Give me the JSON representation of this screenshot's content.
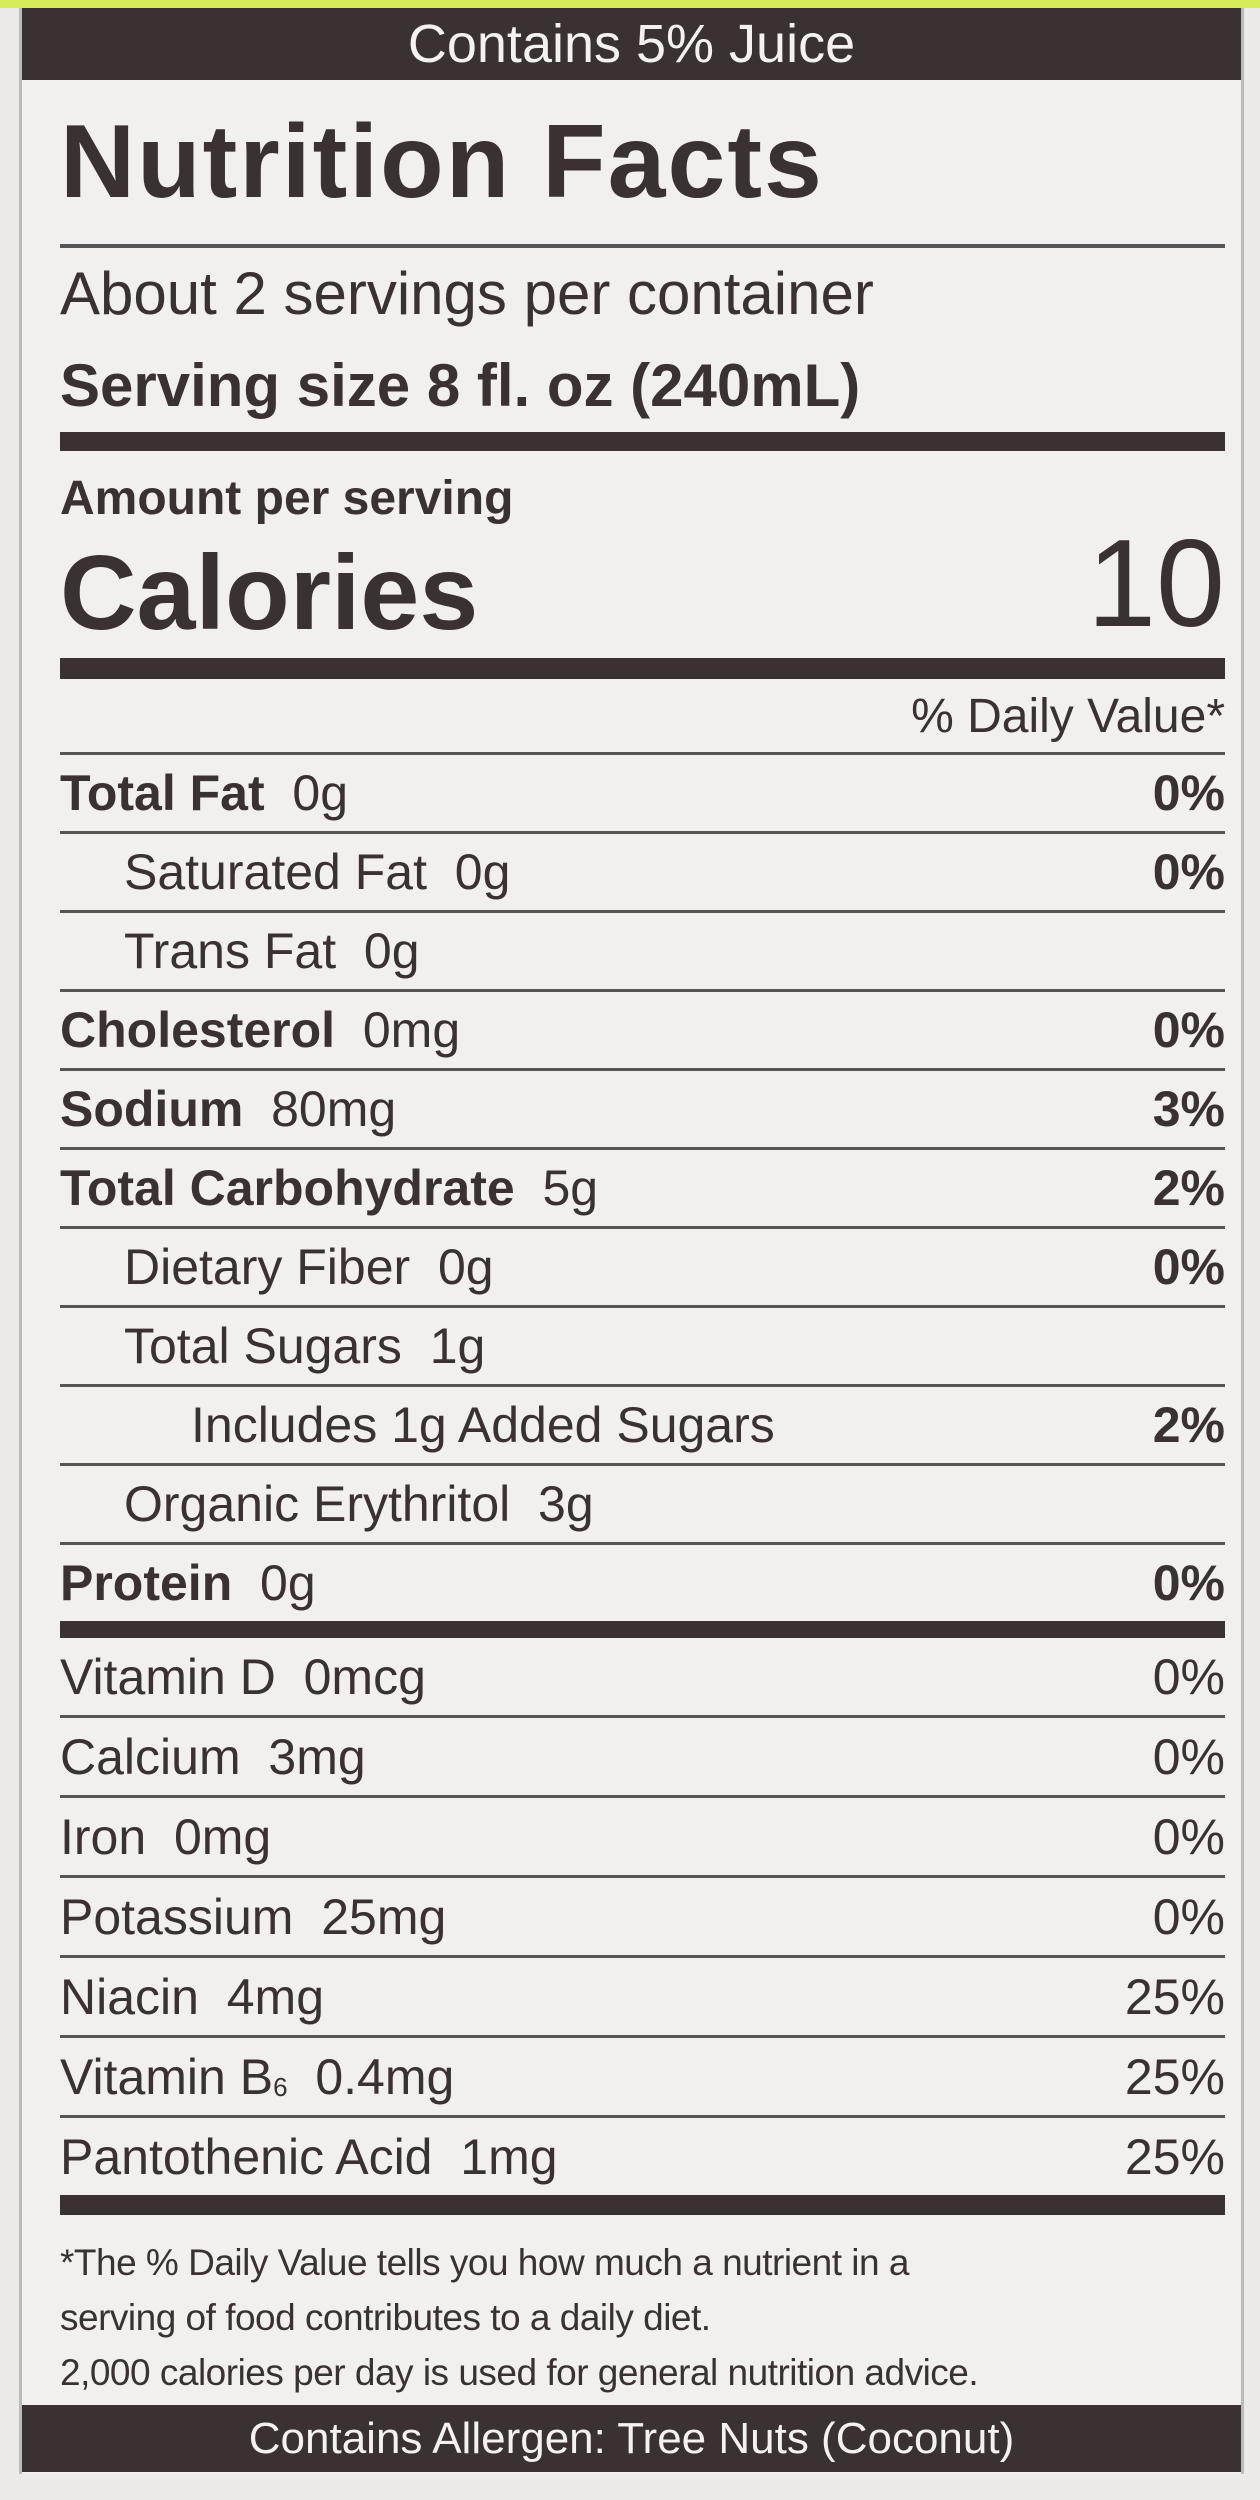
{
  "colors": {
    "ink": "#3a3230",
    "paper": "#f1f0ee",
    "accent_strip": "#d8ec5a"
  },
  "top_banner": "Contains 5% Juice",
  "title": "Nutrition Facts",
  "servings_per_container": "About 2 servings per container",
  "serving_size": "Serving size  8 fl. oz (240mL)",
  "amount_per_serving": "Amount per serving",
  "calories_label": "Calories",
  "calories_value": "10",
  "daily_value_header": "% Daily Value*",
  "nutrients": [
    {
      "name": "Total Fat",
      "amount": "0g",
      "dv": "0%",
      "bold": true,
      "indent": 0
    },
    {
      "name": "Saturated Fat",
      "amount": "0g",
      "dv": "0%",
      "bold": false,
      "indent": 1
    },
    {
      "name": "Trans Fat",
      "amount": "0g",
      "dv": "",
      "bold": false,
      "indent": 1
    },
    {
      "name": "Cholesterol",
      "amount": "0mg",
      "dv": "0%",
      "bold": true,
      "indent": 0
    },
    {
      "name": "Sodium",
      "amount": "80mg",
      "dv": "3%",
      "bold": true,
      "indent": 0
    },
    {
      "name": "Total Carbohydrate",
      "amount": "5g",
      "dv": "2%",
      "bold": true,
      "indent": 0
    },
    {
      "name": "Dietary Fiber",
      "amount": "0g",
      "dv": "0%",
      "bold": false,
      "indent": 1
    },
    {
      "name": "Total Sugars",
      "amount": "1g",
      "dv": "",
      "bold": false,
      "indent": 1
    },
    {
      "name": "Includes 1g Added Sugars",
      "amount": "",
      "dv": "2%",
      "bold": false,
      "indent": 2
    },
    {
      "name": "Organic Erythritol",
      "amount": "3g",
      "dv": "",
      "bold": false,
      "indent": 1
    },
    {
      "name": "Protein",
      "amount": "0g",
      "dv": "0%",
      "bold": true,
      "indent": 0
    }
  ],
  "vitamins": [
    {
      "name": "Vitamin D",
      "sub": "",
      "amount": "0mcg",
      "dv": "0%"
    },
    {
      "name": "Calcium",
      "sub": "",
      "amount": "3mg",
      "dv": "0%"
    },
    {
      "name": "Iron",
      "sub": "",
      "amount": "0mg",
      "dv": "0%"
    },
    {
      "name": "Potassium",
      "sub": "",
      "amount": "25mg",
      "dv": "0%"
    },
    {
      "name": "Niacin",
      "sub": "",
      "amount": "4mg",
      "dv": "25%"
    },
    {
      "name": "Vitamin B",
      "sub": "6",
      "amount": "0.4mg",
      "dv": "25%"
    },
    {
      "name": "Pantothenic Acid",
      "sub": "",
      "amount": "1mg",
      "dv": "25%"
    }
  ],
  "footnote": [
    "*The % Daily Value tells you how much a nutrient in a",
    "serving of food contributes to a daily diet.",
    "2,000 calories per day is used for general nutrition advice."
  ],
  "allergen_banner": "Contains Allergen: Tree Nuts (Coconut)"
}
